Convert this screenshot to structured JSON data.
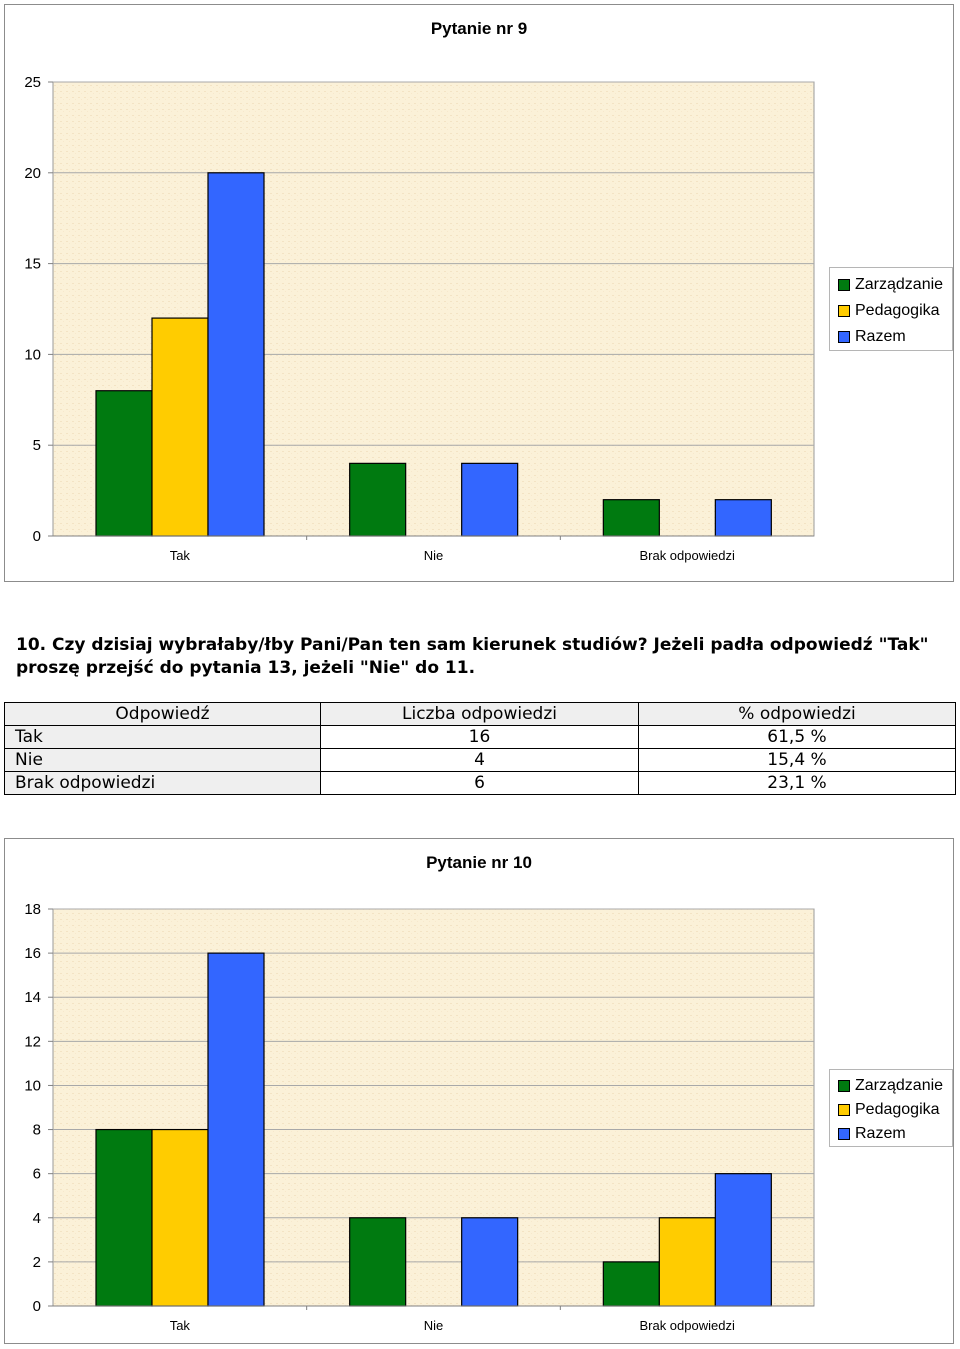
{
  "charts": [
    {
      "title": "Pytanie nr 9",
      "type": "bar",
      "categories": [
        "Tak",
        "Nie",
        "Brak odpowiedzi"
      ],
      "ylim": [
        0,
        25
      ],
      "yticks": [
        0,
        5,
        10,
        15,
        20,
        25
      ],
      "grid": true,
      "legend_position": "right",
      "series": [
        {
          "name": "Zarządzanie",
          "color": "#007a10",
          "values": [
            8,
            4,
            2
          ]
        },
        {
          "name": "Pedagogika",
          "color": "#ffcc00",
          "values": [
            12,
            0,
            0
          ]
        },
        {
          "name": "Razem",
          "color": "#3366ff",
          "values": [
            20,
            4,
            2
          ]
        }
      ]
    },
    {
      "title": "Pytanie nr 10",
      "type": "bar",
      "categories": [
        "Tak",
        "Nie",
        "Brak odpowiedzi"
      ],
      "ylim": [
        0,
        18
      ],
      "yticks": [
        0,
        2,
        4,
        6,
        8,
        10,
        12,
        14,
        16,
        18
      ],
      "grid": true,
      "legend_position": "right",
      "series": [
        {
          "name": "Zarządzanie",
          "color": "#007a10",
          "values": [
            8,
            4,
            2
          ]
        },
        {
          "name": "Pedagogika",
          "color": "#ffcc00",
          "values": [
            8,
            0,
            4
          ]
        },
        {
          "name": "Razem",
          "color": "#3366ff",
          "values": [
            16,
            4,
            6
          ]
        }
      ]
    }
  ],
  "question": {
    "text": "10. Czy dzisiaj wybrałaby/łby Pani/Pan ten sam kierunek studiów? Jeżeli padła odpowiedź \"Tak\" proszę przejść do pytania 13, jeżeli \"Nie\" do 11."
  },
  "table": {
    "headers": [
      "Odpowiedź",
      "Liczba odpowiedzi",
      "% odpowiedzi"
    ],
    "rows": [
      [
        "Tak",
        "16",
        "61,5 %"
      ],
      [
        "Nie",
        "4",
        "15,4 %"
      ],
      [
        "Brak odpowiedzi",
        "6",
        "23,1 %"
      ]
    ]
  }
}
